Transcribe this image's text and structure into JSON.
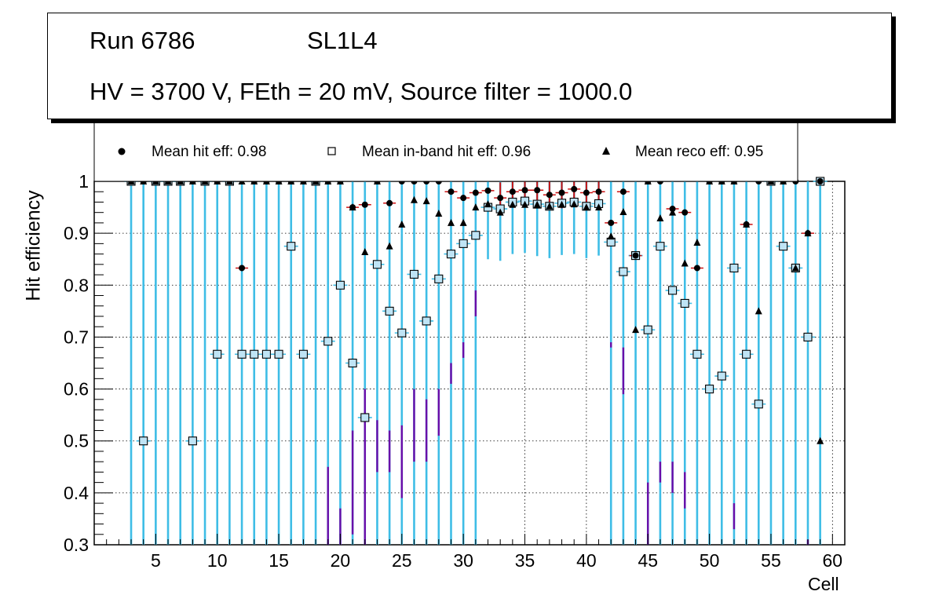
{
  "header": {
    "run": "Run 6786",
    "layer": "SL1L4",
    "settings": "HV = 3700 V, FEth = 20 mV, Source filter = 1000.0"
  },
  "legend": {
    "hit": "Mean hit  eff: 0.98",
    "inband": "Mean in-band hit eff: 0.96",
    "reco": "Mean reco eff: 0.95"
  },
  "colors": {
    "cyan_bar": "#3ebde6",
    "purple_bar": "#6a0ca8",
    "red_bar": "#cc1111",
    "marker_fill": "#bfe4f5"
  },
  "chart_data": {
    "type": "scatter",
    "xlabel": "Cell",
    "ylabel": "Hit efficiency",
    "xlim": [
      0,
      61
    ],
    "ylim": [
      0.3,
      1.0
    ],
    "xticks": [
      5,
      10,
      15,
      20,
      25,
      30,
      35,
      40,
      45,
      50,
      55,
      60
    ],
    "yticks": [
      0.3,
      0.4,
      0.5,
      0.6,
      0.7,
      0.8,
      0.9,
      1.0
    ],
    "ytick_labels": [
      "0.3",
      "0.4",
      "0.5",
      "0.6",
      "0.7",
      "0.8",
      "0.9",
      "1"
    ],
    "grid": true,
    "series": [
      {
        "name": "Mean hit eff",
        "marker": "circle",
        "x": [
          3,
          4,
          5,
          6,
          7,
          8,
          9,
          10,
          11,
          12,
          13,
          14,
          15,
          16,
          17,
          18,
          19,
          20,
          21,
          22,
          23,
          24,
          25,
          26,
          27,
          28,
          29,
          30,
          31,
          32,
          33,
          34,
          35,
          36,
          37,
          38,
          39,
          40,
          41,
          42,
          43,
          44,
          45,
          46,
          47,
          48,
          49,
          50,
          51,
          52,
          53,
          54,
          55,
          56,
          57,
          58,
          59
        ],
        "values": [
          1,
          1,
          1,
          1,
          1,
          1,
          1,
          1,
          1,
          0.833,
          1,
          1,
          1,
          1,
          1,
          1,
          1,
          1,
          0.95,
          0.955,
          1,
          0.958,
          1,
          1,
          1,
          1,
          0.98,
          0.968,
          0.978,
          0.982,
          0.968,
          0.98,
          0.983,
          0.983,
          0.974,
          0.978,
          0.985,
          0.978,
          0.98,
          0.92,
          0.98,
          0.857,
          1,
          1,
          0.947,
          0.94,
          0.833,
          1,
          1,
          1,
          0.917,
          1,
          1,
          1,
          1,
          0.9,
          1
        ],
        "err_lo": [
          0,
          0,
          0,
          0,
          0,
          0,
          0,
          0,
          0,
          0,
          0,
          0,
          0,
          0,
          0,
          0,
          0,
          0,
          0,
          0,
          0,
          0,
          0,
          0,
          0,
          0,
          0,
          0,
          0,
          0,
          0.015,
          0.02,
          0.02,
          0.02,
          0.02,
          0.03,
          0.03,
          0.03,
          0.02,
          0,
          0,
          0,
          0,
          0,
          0,
          0,
          0,
          0,
          0,
          0,
          0,
          0,
          0,
          0,
          0,
          0,
          0
        ],
        "err_hi": [
          0,
          0,
          0,
          0,
          0,
          0,
          0,
          0,
          0,
          0,
          0,
          0,
          0,
          0,
          0,
          0,
          0,
          0,
          0,
          0,
          0,
          0,
          0,
          0,
          0,
          0,
          0,
          0,
          0,
          0,
          0.03,
          0.03,
          0.03,
          0.03,
          0.03,
          0.03,
          0.03,
          0.03,
          0.03,
          0,
          0,
          0,
          0,
          0,
          0,
          0,
          0,
          0,
          0,
          0,
          0,
          0,
          0,
          0,
          0,
          0,
          0
        ]
      },
      {
        "name": "Mean in-band hit eff",
        "marker": "open-square",
        "x": [
          3,
          4,
          5,
          6,
          7,
          8,
          9,
          10,
          11,
          12,
          13,
          14,
          15,
          16,
          17,
          18,
          19,
          20,
          21,
          22,
          23,
          24,
          25,
          26,
          27,
          28,
          29,
          30,
          31,
          32,
          33,
          34,
          35,
          36,
          37,
          38,
          39,
          40,
          41,
          42,
          43,
          44,
          45,
          46,
          47,
          48,
          49,
          50,
          51,
          52,
          53,
          54,
          55,
          56,
          57,
          58,
          59
        ],
        "values": [
          1,
          0.5,
          1,
          1,
          1,
          0.5,
          1,
          0.667,
          1,
          0.667,
          0.667,
          0.667,
          0.667,
          0.875,
          0.667,
          1,
          0.692,
          0.8,
          0.65,
          0.545,
          0.84,
          0.75,
          0.708,
          0.821,
          0.731,
          0.812,
          0.86,
          0.88,
          0.896,
          0.95,
          0.947,
          0.96,
          0.962,
          0.956,
          0.952,
          0.958,
          0.96,
          0.952,
          0.957,
          0.883,
          0.826,
          0.857,
          0.714,
          0.875,
          0.79,
          0.765,
          0.667,
          0.6,
          0.625,
          0.833,
          0.667,
          0.571,
          1,
          0.875,
          0.833,
          0.7,
          1
        ],
        "err_lo": [
          1,
          1,
          1,
          1,
          1,
          1,
          1,
          1,
          1,
          1,
          1,
          1,
          1,
          1,
          1,
          1,
          1,
          1,
          1,
          1,
          1,
          1,
          1,
          1,
          1,
          1,
          1,
          1,
          1,
          0.1,
          0.1,
          0.1,
          0.1,
          0.1,
          0.1,
          0.1,
          0.1,
          0.1,
          0.1,
          1,
          1,
          1,
          1,
          1,
          1,
          1,
          1,
          1,
          1,
          1,
          1,
          1,
          1,
          1,
          1,
          1,
          1
        ],
        "err_hi": [
          0,
          0.5,
          0,
          0,
          0,
          0.5,
          0,
          0.333,
          0,
          0.333,
          0.333,
          0.333,
          0.333,
          0.125,
          0.333,
          0,
          0.308,
          0.2,
          0.35,
          0.455,
          0.16,
          0.25,
          0.292,
          0.179,
          0.269,
          0.188,
          0.14,
          0.12,
          0.104,
          0.05,
          0.053,
          0.04,
          0.038,
          0.044,
          0.048,
          0.042,
          0.04,
          0.048,
          0.043,
          0.117,
          0.174,
          0.143,
          0.286,
          0.125,
          0.21,
          0.235,
          0.333,
          0.4,
          0.375,
          0.167,
          0.333,
          0.429,
          0,
          0.125,
          0.167,
          0.3,
          0
        ]
      },
      {
        "name": "Mean reco eff",
        "marker": "triangle",
        "x": [
          3,
          4,
          5,
          6,
          7,
          8,
          9,
          10,
          11,
          12,
          13,
          14,
          15,
          16,
          17,
          18,
          19,
          20,
          21,
          22,
          23,
          24,
          25,
          26,
          27,
          28,
          29,
          30,
          31,
          32,
          33,
          34,
          35,
          36,
          37,
          38,
          39,
          40,
          41,
          42,
          43,
          44,
          45,
          46,
          47,
          48,
          49,
          50,
          51,
          52,
          53,
          54,
          55,
          56,
          57,
          58,
          59
        ],
        "values": [
          1,
          1,
          1,
          1,
          1,
          1,
          1,
          1,
          1,
          1,
          1,
          1,
          1,
          1,
          1,
          1,
          1,
          1,
          0.95,
          0.864,
          1,
          0.875,
          0.917,
          0.964,
          0.962,
          0.938,
          0.92,
          0.92,
          0.95,
          0.956,
          0.94,
          0.955,
          0.955,
          0.955,
          0.952,
          0.955,
          0.956,
          0.95,
          0.95,
          0.894,
          0.941,
          0.714,
          1,
          0.929,
          0.94,
          0.842,
          0.882,
          1,
          1,
          1,
          0.917,
          0.75,
          1,
          1,
          0.833,
          0.9,
          0.5
        ],
        "err_lo": [
          0,
          0,
          0,
          0,
          0,
          0,
          0,
          0,
          0,
          0,
          0,
          0,
          0,
          0,
          0,
          0,
          0,
          0,
          0,
          0,
          0,
          0,
          0,
          0,
          0,
          0,
          0,
          0,
          0,
          0,
          0,
          0,
          0,
          0,
          0,
          0,
          0,
          0,
          0,
          0,
          0,
          0,
          0,
          0,
          0,
          0,
          0,
          0,
          0,
          0,
          0,
          0,
          0,
          0,
          0,
          0,
          0
        ],
        "err_hi": [
          0,
          0,
          0,
          0,
          0,
          0,
          0,
          0,
          0,
          0,
          0,
          0,
          0,
          0,
          0,
          0,
          0,
          0,
          0,
          0,
          0,
          0,
          0,
          0,
          0,
          0,
          0,
          0,
          0,
          0,
          0,
          0,
          0,
          0,
          0,
          0,
          0,
          0,
          0,
          0,
          0,
          0,
          0,
          0,
          0,
          0,
          0,
          0,
          0,
          0,
          0,
          0,
          0,
          0,
          0,
          0,
          0
        ]
      }
    ],
    "purple_errors": {
      "x": [
        19,
        20,
        21,
        22,
        23,
        24,
        25,
        26,
        27,
        28,
        29,
        30,
        31,
        42,
        43,
        45,
        46,
        47,
        48,
        52,
        58
      ],
      "lo": [
        0.3,
        0.3,
        0.32,
        0.3,
        0.44,
        0.44,
        0.39,
        0.46,
        0.46,
        0.51,
        0.61,
        0.66,
        0.74,
        0.68,
        0.59,
        0.3,
        0.42,
        0.4,
        0.37,
        0.33,
        0.3
      ],
      "hi": [
        0.45,
        0.37,
        0.52,
        0.6,
        0.54,
        0.52,
        0.53,
        0.6,
        0.58,
        0.6,
        0.65,
        0.69,
        0.79,
        0.69,
        0.68,
        0.42,
        0.46,
        0.46,
        0.44,
        0.38,
        0.31
      ]
    }
  }
}
